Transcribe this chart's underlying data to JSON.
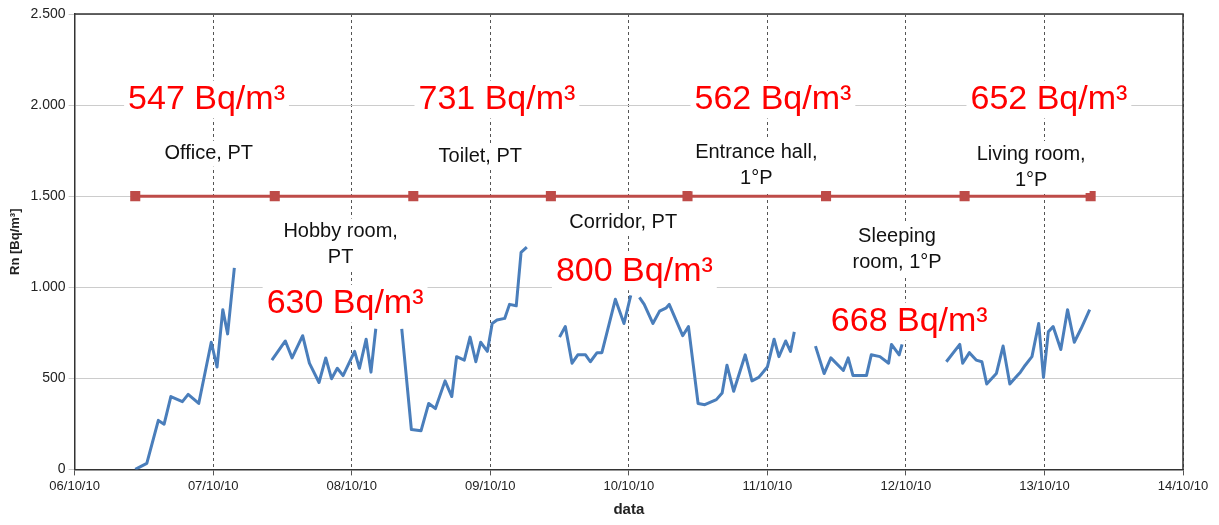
{
  "chart_data": {
    "type": "line",
    "xlabel": "data",
    "ylabel": "Rn [Bq/m³]",
    "xlim": [
      "--10-06",
      "--10-14"
    ],
    "xticks": [
      {
        "value": "--10-06",
        "label": "06/10/10"
      },
      {
        "value": "--10-07",
        "label": "07/10/10"
      },
      {
        "value": "--10-08",
        "label": "08/10/10"
      },
      {
        "value": "--10-09",
        "label": "09/10/10"
      },
      {
        "value": "--10-10",
        "label": "10/10/10"
      },
      {
        "value": "--10-11",
        "label": "11/10/10"
      },
      {
        "value": "--10-12",
        "label": "12/10/10"
      },
      {
        "value": "--10-13",
        "label": "13/10/10"
      },
      {
        "value": "--10-14",
        "label": "14/10/10"
      }
    ],
    "ylim": [
      0,
      2500
    ],
    "yticks": [
      {
        "value": 0,
        "label": "0"
      },
      {
        "value": 500,
        "label": "500"
      },
      {
        "value": 1000,
        "label": "1.000"
      },
      {
        "value": 1500,
        "label": "1.500"
      },
      {
        "value": 2000,
        "label": "2.000"
      },
      {
        "value": 2500,
        "label": "2.500"
      }
    ],
    "grid": true,
    "legend": false,
    "line_style": "solid",
    "series": [
      {
        "color": "#4a7ebb",
        "marker": "none",
        "x": [
          "--10-06T10:30",
          "--10-06T12:30",
          "--10-06T14:30",
          "--10-06T15:30",
          "--10-06T16:40",
          "--10-06T18:40",
          "--10-06T19:40",
          "--10-06T21:30",
          "--10-06T23:40",
          "--10-07T00:40",
          "--10-07T01:40",
          "--10-07T02:30",
          "--10-07T03:40",
          "--10-07T05:00",
          "--10-07T10:10",
          "--10-07T12:30",
          "--10-07T13:40",
          "--10-07T15:30",
          "--10-07T16:40",
          "--10-07T18:20",
          "--10-07T19:30",
          "--10-07T20:30",
          "--10-07T21:30",
          "--10-07T22:30",
          "--10-08T00:30",
          "--10-08T01:20",
          "--10-08T02:30",
          "--10-08T03:20",
          "--10-08T04:10",
          "--10-08T05:30",
          "--10-08T08:40",
          "--10-08T10:20",
          "--10-08T12:00",
          "--10-08T13:20",
          "--10-08T14:30",
          "--10-08T16:10",
          "--10-08T17:20",
          "--10-08T18:10",
          "--10-08T19:30",
          "--10-08T20:30",
          "--10-08T21:30",
          "--10-08T22:20",
          "--10-08T23:30",
          "--10-09T00:20",
          "--10-09T01:10",
          "--10-09T02:30",
          "--10-09T03:20",
          "--10-09T04:30",
          "--10-09T05:20",
          "--10-09T06:20",
          "--10-09T07:00",
          "--10-09T12:00",
          "--10-09T13:00",
          "--10-09T14:10",
          "--10-09T15:10",
          "--10-09T16:30",
          "--10-09T17:20",
          "--10-09T18:30",
          "--10-09T19:20",
          "--10-09T21:40",
          "--10-09T23:10",
          "--10-10T00:20",
          "--10-10T01:00",
          "--10-10T01:50",
          "--10-10T02:40",
          "--10-10T04:10",
          "--10-10T05:20",
          "--10-10T06:30",
          "--10-10T07:00",
          "--10-10T09:20",
          "--10-10T10:20",
          "--10-10T12:00",
          "--10-10T13:10",
          "--10-10T15:10",
          "--10-10T16:10",
          "--10-10T17:00",
          "--10-10T18:10",
          "--10-10T20:10",
          "--10-10T21:20",
          "--10-10T22:30",
          "--10-11T00:00",
          "--10-11T01:10",
          "--10-11T02:00",
          "--10-11T03:10",
          "--10-11T04:00",
          "--10-11T04:40",
          "--10-11T06:00",
          "--10-11T08:20",
          "--10-11T09:50",
          "--10-11T11:00",
          "--10-11T13:10",
          "--10-11T14:00",
          "--10-11T14:50",
          "--10-11T17:10",
          "--10-11T18:00",
          "--10-11T19:30",
          "--10-11T21:00",
          "--10-11T21:30",
          "--10-11T22:50",
          "--10-11T23:20",
          "--10-12T03:00",
          "--10-12T07:00",
          "--10-12T09:20",
          "--10-12T09:50",
          "--10-12T11:00",
          "--10-12T12:10",
          "--10-12T13:10",
          "--10-12T14:00",
          "--10-12T15:40",
          "--10-12T16:50",
          "--10-12T18:00",
          "--10-12T19:50",
          "--10-12T20:40",
          "--10-12T21:50",
          "--10-12T23:00",
          "--10-12T23:50",
          "--10-13T00:40",
          "--10-13T01:30",
          "--10-13T02:50",
          "--10-13T04:00",
          "--10-13T05:10",
          "--10-13T06:20",
          "--10-13T07:50"
        ],
        "values": [
          0,
          33,
          269,
          248,
          400,
          372,
          412,
          362,
          698,
          562,
          877,
          744,
          1106,
          null,
          600,
          705,
          612,
          734,
          583,
          477,
          612,
          498,
          555,
          515,
          648,
          555,
          715,
          534,
          772,
          null,
          772,
          219,
          212,
          362,
          334,
          486,
          400,
          619,
          600,
          726,
          591,
          698,
          648,
          801,
          820,
          829,
          906,
          898,
          1191,
          1220,
          null,
          726,
          784,
          583,
          629,
          629,
          591,
          641,
          641,
          934,
          801,
          955,
          null,
          944,
          906,
          801,
          869,
          887,
          906,
          734,
          784,
          362,
          355,
          383,
          419,
          572,
          429,
          629,
          486,
          505,
          562,
          715,
          619,
          705,
          648,
          755,
          null,
          677,
          526,
          612,
          543,
          612,
          515,
          515,
          629,
          619,
          583,
          686,
          629,
          686,
          null,
          591,
          686,
          583,
          641,
          600,
          591,
          469,
          526,
          677,
          469,
          534,
          572,
          619,
          801,
          505,
          755,
          784,
          658,
          877,
          698,
          772,
          877
        ]
      },
      {
        "color": "#be4b48",
        "marker": "square",
        "x": [
          "--10-06T10:30",
          "--10-07T10:40",
          "--10-08T10:40",
          "--10-09T10:30",
          "--10-10T10:10",
          "--10-11T10:10",
          "--10-12T10:10",
          "--10-13T08:00"
        ],
        "values": [
          1500,
          1500,
          1500,
          1500,
          1500,
          1500,
          1500,
          1500
        ]
      }
    ],
    "annotations": [
      "547 Bq/m³",
      "731 Bq/m³",
      "562 Bq/m³",
      "652 Bq/m³",
      "630 Bq/m³",
      "800 Bq/m³",
      "668 Bq/m³",
      "Office, PT",
      "Hobby room,\nPT",
      "Toilet, PT",
      "Corridor, PT",
      "Entrance hall,\n1°P",
      "Sleeping\nroom, 1°P",
      "Living room,\n1°P"
    ]
  }
}
